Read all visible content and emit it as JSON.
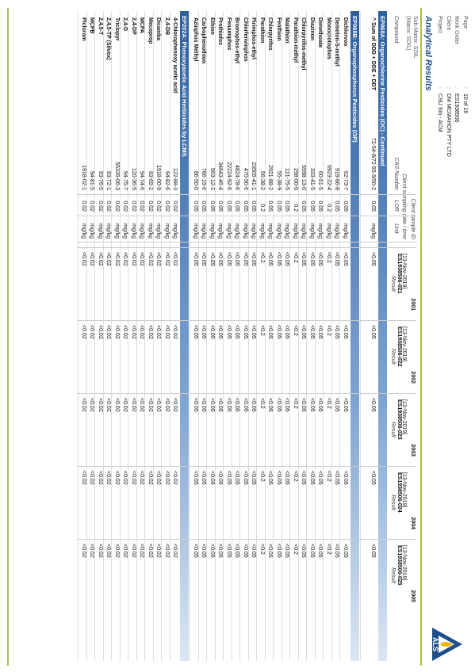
{
  "header": {
    "separator": ":",
    "fields": [
      {
        "label": "Page",
        "value": "10 of 16"
      },
      {
        "label": "Work Order",
        "value": "ES1938506"
      },
      {
        "label": "Client",
        "value": "DM MCMAHON PTY LTD"
      },
      {
        "label": "Project",
        "value": "CSU Stn - ACM"
      }
    ]
  },
  "title": "Analytical Results",
  "sub_matrix": "Sub-Matrix: SOIL",
  "matrix": "(Matrix: SOIL)",
  "labels": {
    "sample_id": "Client sample ID",
    "sampling_date": "Client sampling date / time",
    "compound": "Compound",
    "cas": "CAS Number",
    "lor": "LOR",
    "unit": "Unit"
  },
  "samples": [
    {
      "id": "2001",
      "date": "[13-Nov-2019]",
      "lab_id": "ES1938506-021",
      "col": "Result"
    },
    {
      "id": "2002",
      "date": "[13-Nov-2019]",
      "lab_id": "ES1938506-022",
      "col": "Result"
    },
    {
      "id": "2003",
      "date": "[13-Nov-2019]",
      "lab_id": "ES1938506-023",
      "col": "Result"
    },
    {
      "id": "2004",
      "date": "[13-Nov-2019]",
      "lab_id": "ES1938506-024",
      "col": "Result"
    },
    {
      "id": "2005",
      "date": "[13-Nov-2019]",
      "lab_id": "ES1938506-025",
      "col": "Result"
    }
  ],
  "logo": "ALS",
  "sections": [
    {
      "title": "EP068A: Organochlorine Pesticides (OC) - Continued",
      "rows": [
        {
          "compound": "^ Sum of DDD + DDE + DDT",
          "cas": "72-54-8/72-55-9/50-2",
          "lor": "0.05",
          "unit": "mg/kg",
          "results": [
            "<0.05",
            "<0.05",
            "<0.05",
            "<0.05",
            "<0.05"
          ]
        }
      ]
    },
    {
      "title": "EP068B: Organophosphorus Pesticides (OP)",
      "rows": [
        {
          "compound": "Dichlorvos",
          "cas": "62-73-7",
          "lor": "0.05",
          "unit": "mg/kg",
          "results": [
            "<0.05",
            "<0.05",
            "<0.05",
            "<0.05",
            "<0.05"
          ]
        },
        {
          "compound": "Demeton-S-methyl",
          "cas": "919-86-8",
          "lor": "0.05",
          "unit": "mg/kg",
          "results": [
            "<0.05",
            "<0.05",
            "<0.05",
            "<0.05",
            "<0.05"
          ]
        },
        {
          "compound": "Monocrotophos",
          "cas": "6923-22-4",
          "lor": "0.2",
          "unit": "mg/kg",
          "results": [
            "<0.2",
            "<0.2",
            "<0.2",
            "<0.2",
            "<0.2"
          ]
        },
        {
          "compound": "Dimethoate",
          "cas": "60-51-5",
          "lor": "0.05",
          "unit": "mg/kg",
          "results": [
            "<0.05",
            "<0.05",
            "<0.05",
            "<0.05",
            "<0.05"
          ]
        },
        {
          "compound": "Diazinon",
          "cas": "333-41-5",
          "lor": "0.05",
          "unit": "mg/kg",
          "results": [
            "<0.05",
            "<0.05",
            "<0.05",
            "<0.05",
            "<0.05"
          ]
        },
        {
          "compound": "Chlorpyrifos-methyl",
          "cas": "5598-13-0",
          "lor": "0.05",
          "unit": "mg/kg",
          "results": [
            "<0.05",
            "<0.05",
            "<0.05",
            "<0.05",
            "<0.05"
          ]
        },
        {
          "compound": "Parathion-methyl",
          "cas": "298-00-0",
          "lor": "0.2",
          "unit": "mg/kg",
          "results": [
            "<0.2",
            "<0.2",
            "<0.2",
            "<0.2",
            "<0.2"
          ]
        },
        {
          "compound": "Malathion",
          "cas": "121-75-5",
          "lor": "0.05",
          "unit": "mg/kg",
          "results": [
            "<0.05",
            "<0.05",
            "<0.05",
            "<0.05",
            "<0.05"
          ]
        },
        {
          "compound": "Fenthion",
          "cas": "55-38-9",
          "lor": "0.05",
          "unit": "mg/kg",
          "results": [
            "<0.05",
            "<0.05",
            "<0.05",
            "<0.05",
            "<0.05"
          ]
        },
        {
          "compound": "Chlorpyrifos",
          "cas": "2921-88-2",
          "lor": "0.05",
          "unit": "mg/kg",
          "results": [
            "<0.05",
            "<0.05",
            "<0.05",
            "<0.05",
            "<0.05"
          ]
        },
        {
          "compound": "Parathion",
          "cas": "56-38-2",
          "lor": "0.2",
          "unit": "mg/kg",
          "results": [
            "<0.2",
            "<0.2",
            "<0.2",
            "<0.2",
            "<0.2"
          ]
        },
        {
          "compound": "Pirimphos-ethyl",
          "cas": "23505-41-1",
          "lor": "0.05",
          "unit": "mg/kg",
          "results": [
            "<0.05",
            "<0.05",
            "<0.05",
            "<0.05",
            "<0.05"
          ]
        },
        {
          "compound": "Chlorfenvinphos",
          "cas": "470-90-6",
          "lor": "0.05",
          "unit": "mg/kg",
          "results": [
            "<0.05",
            "<0.05",
            "<0.05",
            "<0.05",
            "<0.05"
          ]
        },
        {
          "compound": "Bromophos-ethyl",
          "cas": "4824-78-6",
          "lor": "0.05",
          "unit": "mg/kg",
          "results": [
            "<0.05",
            "<0.05",
            "<0.05",
            "<0.05",
            "<0.05"
          ]
        },
        {
          "compound": "Fenamiphos",
          "cas": "22224-92-6",
          "lor": "0.05",
          "unit": "mg/kg",
          "results": [
            "<0.05",
            "<0.05",
            "<0.05",
            "<0.05",
            "<0.05"
          ]
        },
        {
          "compound": "Prothiofos",
          "cas": "34643-46-4",
          "lor": "0.05",
          "unit": "mg/kg",
          "results": [
            "<0.05",
            "<0.05",
            "<0.05",
            "<0.05",
            "<0.05"
          ]
        },
        {
          "compound": "Ethion",
          "cas": "563-12-2",
          "lor": "0.05",
          "unit": "mg/kg",
          "results": [
            "<0.05",
            "<0.05",
            "<0.05",
            "<0.05",
            "<0.05"
          ]
        },
        {
          "compound": "Carbophenothion",
          "cas": "786-19-6",
          "lor": "0.05",
          "unit": "mg/kg",
          "results": [
            "<0.05",
            "<0.05",
            "<0.05",
            "<0.05",
            "<0.05"
          ]
        },
        {
          "compound": "Azinphos Methyl",
          "cas": "86-50-0",
          "lor": "0.05",
          "unit": "mg/kg",
          "results": [
            "<0.05",
            "<0.05",
            "<0.05",
            "<0.05",
            "<0.05"
          ]
        }
      ]
    },
    {
      "title": "EP202A: Phenoxyacetic Acid Herbicides by LCMS",
      "rows": [
        {
          "compound": "4-Chlorophenoxy acetic acid",
          "cas": "122-88-3",
          "lor": "0.02",
          "unit": "mg/kg",
          "results": [
            "<0.02",
            "<0.02",
            "<0.02",
            "<0.02",
            "<0.02"
          ]
        },
        {
          "compound": "2,4-DB",
          "cas": "94-82-6",
          "lor": "0.02",
          "unit": "mg/kg",
          "results": [
            "<0.02",
            "<0.02",
            "<0.02",
            "<0.02",
            "<0.02"
          ]
        },
        {
          "compound": "Dicamba",
          "cas": "1918-00-9",
          "lor": "0.02",
          "unit": "mg/kg",
          "results": [
            "<0.02",
            "<0.02",
            "<0.02",
            "<0.02",
            "<0.02"
          ]
        },
        {
          "compound": "Mecoprop",
          "cas": "93-65-2",
          "lor": "0.02",
          "unit": "mg/kg",
          "results": [
            "<0.02",
            "<0.02",
            "<0.02",
            "<0.02",
            "<0.02"
          ]
        },
        {
          "compound": "MCPA",
          "cas": "94-74-6",
          "lor": "0.02",
          "unit": "mg/kg",
          "results": [
            "<0.02",
            "<0.02",
            "<0.02",
            "<0.02",
            "<0.02"
          ]
        },
        {
          "compound": "2,4-DP",
          "cas": "120-36-5",
          "lor": "0.02",
          "unit": "mg/kg",
          "results": [
            "<0.02",
            "<0.02",
            "<0.02",
            "<0.02",
            "<0.02"
          ]
        },
        {
          "compound": "2,4-D",
          "cas": "94-75-7",
          "lor": "0.02",
          "unit": "mg/kg",
          "results": [
            "<0.02",
            "<0.02",
            "<0.02",
            "<0.02",
            "<0.02"
          ]
        },
        {
          "compound": "Triclopyr",
          "cas": "55335-06-3",
          "lor": "0.02",
          "unit": "mg/kg",
          "results": [
            "<0.02",
            "<0.02",
            "<0.02",
            "<0.02",
            "<0.02"
          ]
        },
        {
          "compound": "2,4,5-TP (Silvex)",
          "cas": "93-72-1",
          "lor": "0.02",
          "unit": "mg/kg",
          "results": [
            "<0.02",
            "<0.02",
            "<0.02",
            "<0.02",
            "<0.02"
          ]
        },
        {
          "compound": "2,4,5-T",
          "cas": "93-76-5",
          "lor": "0.02",
          "unit": "mg/kg",
          "results": [
            "<0.02",
            "<0.02",
            "<0.02",
            "<0.02",
            "<0.02"
          ]
        },
        {
          "compound": "MCPB",
          "cas": "94-81-5",
          "lor": "0.02",
          "unit": "mg/kg",
          "results": [
            "<0.02",
            "<0.02",
            "<0.02",
            "<0.02",
            "<0.02"
          ]
        },
        {
          "compound": "Picloram",
          "cas": "1918-02-1",
          "lor": "0.02",
          "unit": "mg/kg",
          "results": [
            "<0.02",
            "<0.02",
            "<0.02",
            "<0.02",
            "<0.02"
          ]
        }
      ]
    }
  ]
}
